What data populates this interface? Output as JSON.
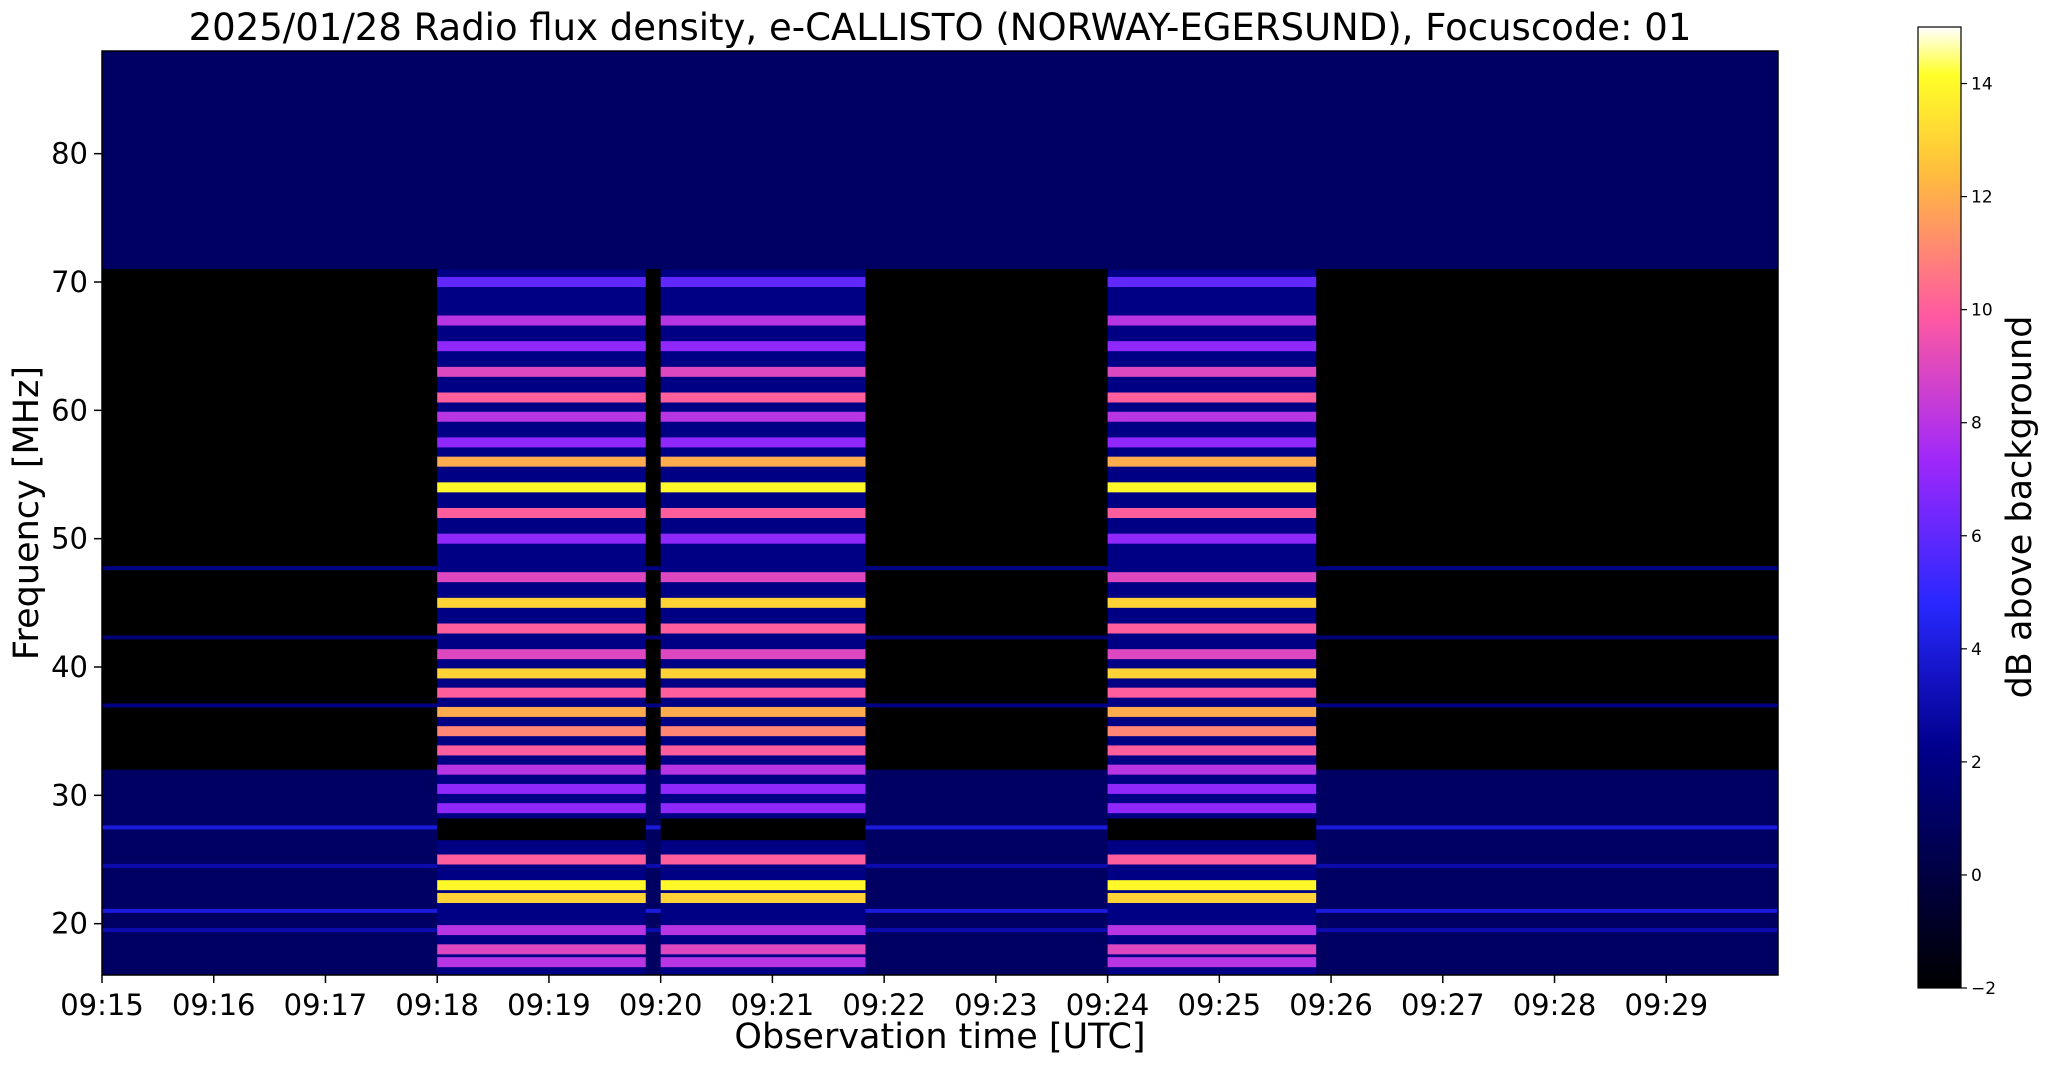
{
  "chart_data": {
    "type": "heatmap",
    "title": "2025/01/28  Radio flux density, e-CALLISTO (NORWAY-EGERSUND), Focuscode: 01",
    "xlabel": "Observation time [UTC]",
    "ylabel": "Frequency [MHz]",
    "colorbar_label": "dB above background",
    "colormap": "gnuplot2",
    "x_range_minutes": [
      0,
      15
    ],
    "x_ticks": [
      "09:15",
      "09:16",
      "09:17",
      "09:18",
      "09:19",
      "09:20",
      "09:21",
      "09:22",
      "09:23",
      "09:24",
      "09:25",
      "09:26",
      "09:27",
      "09:28",
      "09:29"
    ],
    "ylim": [
      16,
      88
    ],
    "y_ticks": [
      20,
      30,
      40,
      50,
      60,
      70,
      80
    ],
    "colorbar_range": [
      -2,
      15
    ],
    "colorbar_ticks": [
      -2,
      0,
      2,
      4,
      6,
      8,
      10,
      12,
      14
    ],
    "background_db": {
      "high_band": {
        "from_mhz": 71,
        "to_mhz": 88,
        "db": 1.0
      },
      "mid_band": {
        "from_mhz": 32,
        "to_mhz": 71,
        "db": -2.0
      },
      "low_band": {
        "from_mhz": 16,
        "to_mhz": 32,
        "db": 1.0
      }
    },
    "bright_blocks": [
      {
        "start": "09:18:00",
        "end": "09:19:52",
        "peak_db": 15
      },
      {
        "start": "09:20:00",
        "end": "09:21:50",
        "peak_db": 15
      },
      {
        "start": "09:24:00",
        "end": "09:25:52",
        "peak_db": 15
      }
    ],
    "bright_bands_mhz": [
      {
        "freq": 70,
        "db": 6
      },
      {
        "freq": 67,
        "db": 8
      },
      {
        "freq": 65,
        "db": 7
      },
      {
        "freq": 63,
        "db": 9
      },
      {
        "freq": 61,
        "db": 10
      },
      {
        "freq": 59.5,
        "db": 8
      },
      {
        "freq": 57.5,
        "db": 7
      },
      {
        "freq": 56,
        "db": 12
      },
      {
        "freq": 54,
        "db": 14
      },
      {
        "freq": 52,
        "db": 10
      },
      {
        "freq": 50,
        "db": 7
      },
      {
        "freq": 47,
        "db": 9
      },
      {
        "freq": 45,
        "db": 13
      },
      {
        "freq": 43,
        "db": 10
      },
      {
        "freq": 41,
        "db": 9
      },
      {
        "freq": 39.5,
        "db": 13
      },
      {
        "freq": 38,
        "db": 10
      },
      {
        "freq": 36.5,
        "db": 12
      },
      {
        "freq": 35,
        "db": 11
      },
      {
        "freq": 33.5,
        "db": 10
      },
      {
        "freq": 32,
        "db": 8
      },
      {
        "freq": 30.5,
        "db": 7
      },
      {
        "freq": 29,
        "db": 7
      },
      {
        "freq": 25,
        "db": 10
      },
      {
        "freq": 23,
        "db": 14
      },
      {
        "freq": 22,
        "db": 13
      },
      {
        "freq": 19.5,
        "db": 8
      },
      {
        "freq": 18,
        "db": 9
      },
      {
        "freq": 17,
        "db": 8
      }
    ],
    "narrow_interference_lines_mhz": [
      {
        "freq": 47.7,
        "db": 2
      },
      {
        "freq": 42.3,
        "db": 1.5
      },
      {
        "freq": 37,
        "db": 2
      },
      {
        "freq": 27.5,
        "db": 4
      },
      {
        "freq": 24.5,
        "db": 3
      },
      {
        "freq": 21,
        "db": 4
      },
      {
        "freq": 19.5,
        "db": 3
      }
    ]
  }
}
